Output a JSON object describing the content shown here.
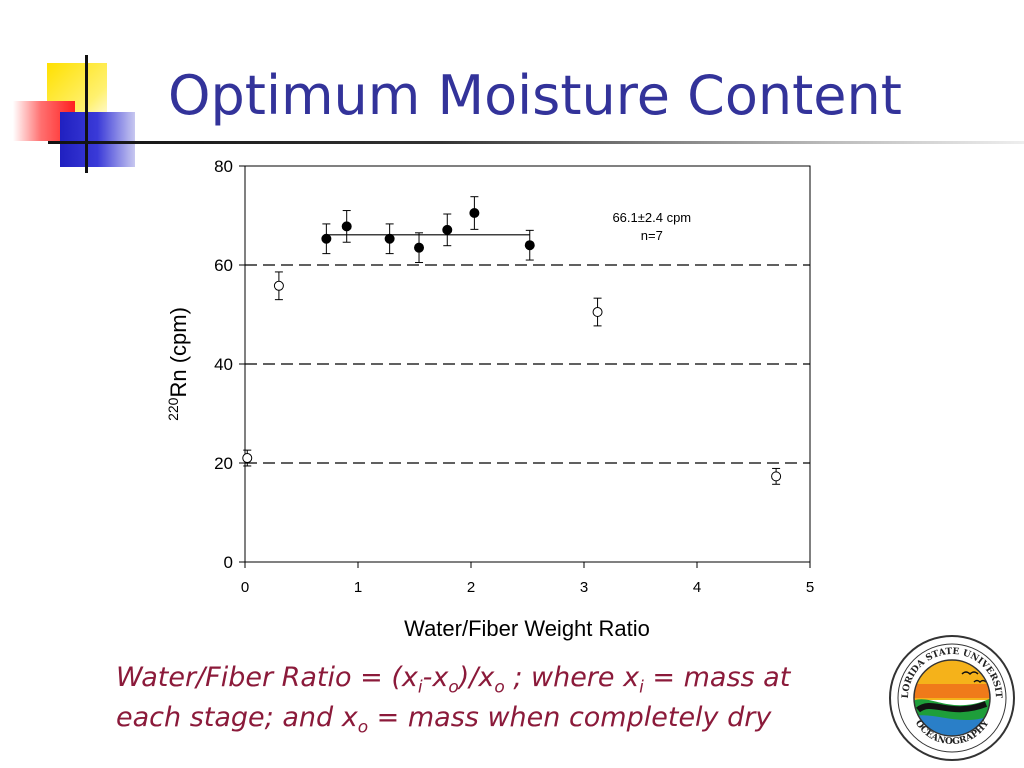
{
  "slide": {
    "title": "Optimum Moisture Content"
  },
  "caption": {
    "line1_a": "Water/Fiber Ratio = (x",
    "line1_sub1": "i",
    "line1_b": "-x",
    "line1_sub2": "o",
    "line1_c": ")/x",
    "line1_sub3": "o",
    "line1_d": " ; where x",
    "line1_sub4": "i",
    "line1_e": " = mass at",
    "line2_a": "each stage; and x",
    "line2_sub": "o",
    "line2_b": " = mass when completely dry"
  },
  "logo": {
    "text_top": "FLORIDA STATE UNIVERSITY",
    "text_bottom": "OCEANOGRAPHY"
  },
  "chart_data": {
    "type": "scatter",
    "xlabel": "Water/Fiber Weight Ratio",
    "ylabel_sup": "220",
    "ylabel_main": "Rn (cpm)",
    "xlim": [
      0,
      5
    ],
    "ylim": [
      0,
      80
    ],
    "xticks": [
      0,
      1,
      2,
      3,
      4,
      5
    ],
    "yticks": [
      0,
      20,
      40,
      60,
      80
    ],
    "dashed_gridlines_y": [
      20,
      40,
      60
    ],
    "series": [
      {
        "marker": "filled-circle",
        "points": [
          {
            "x": 0.72,
            "y": 65.3,
            "err": 3.0
          },
          {
            "x": 0.9,
            "y": 67.8,
            "err": 3.2
          },
          {
            "x": 1.28,
            "y": 65.3,
            "err": 3.0
          },
          {
            "x": 1.54,
            "y": 63.5,
            "err": 3.0
          },
          {
            "x": 1.79,
            "y": 67.1,
            "err": 3.2
          },
          {
            "x": 2.03,
            "y": 70.5,
            "err": 3.3
          },
          {
            "x": 2.52,
            "y": 64.0,
            "err": 3.0
          }
        ]
      },
      {
        "marker": "open-circle",
        "points": [
          {
            "x": 0.02,
            "y": 21.0,
            "err": 1.6
          },
          {
            "x": 0.3,
            "y": 55.8,
            "err": 2.8
          },
          {
            "x": 3.12,
            "y": 50.5,
            "err": 2.8
          },
          {
            "x": 4.7,
            "y": 17.3,
            "err": 1.6
          }
        ]
      }
    ],
    "mean_line": {
      "x1": 0.72,
      "x2": 2.52,
      "y": 66.1
    },
    "annotation": {
      "line1": "66.1±2.4 cpm",
      "line2": "n=7",
      "x": 3.6,
      "y": 68.7
    },
    "colors": {
      "axis": "#000000",
      "marker": "#000000"
    }
  }
}
